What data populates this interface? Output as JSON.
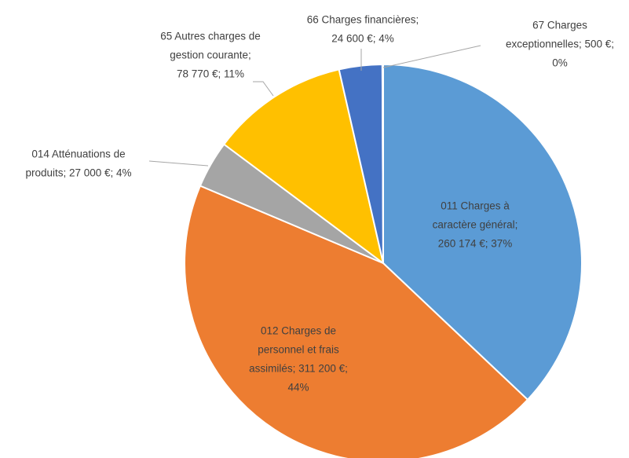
{
  "chart_data": {
    "type": "pie",
    "categories": [
      "011 Charges à caractère général",
      "012 Charges de personnel et frais assimilés",
      "014 Atténuations de produits",
      "65 Autres charges de gestion courante",
      "66 Charges financières",
      "67 Charges exceptionnelles"
    ],
    "labels": [
      [
        "011 Charges à",
        "caractère général;",
        "260 174 €; 37%"
      ],
      [
        "012 Charges de",
        "personnel et frais",
        "assimilés; 311 200 €;",
        "44%"
      ],
      [
        "014 Atténuations de",
        "produits; 27 000 €; 4%"
      ],
      [
        "65 Autres charges de",
        "gestion courante;",
        "78 770 €; 11%"
      ],
      [
        "66 Charges financières;",
        "24 600 €; 4%"
      ],
      [
        "67 Charges",
        "exceptionnelles; 500 €;",
        "0%"
      ]
    ],
    "values": [
      260174,
      311200,
      27000,
      78770,
      24600,
      500
    ],
    "colors": [
      "#5b9bd5",
      "#ed7d31",
      "#a5a5a5",
      "#ffc000",
      "#4472c4",
      "#70ad47"
    ]
  }
}
